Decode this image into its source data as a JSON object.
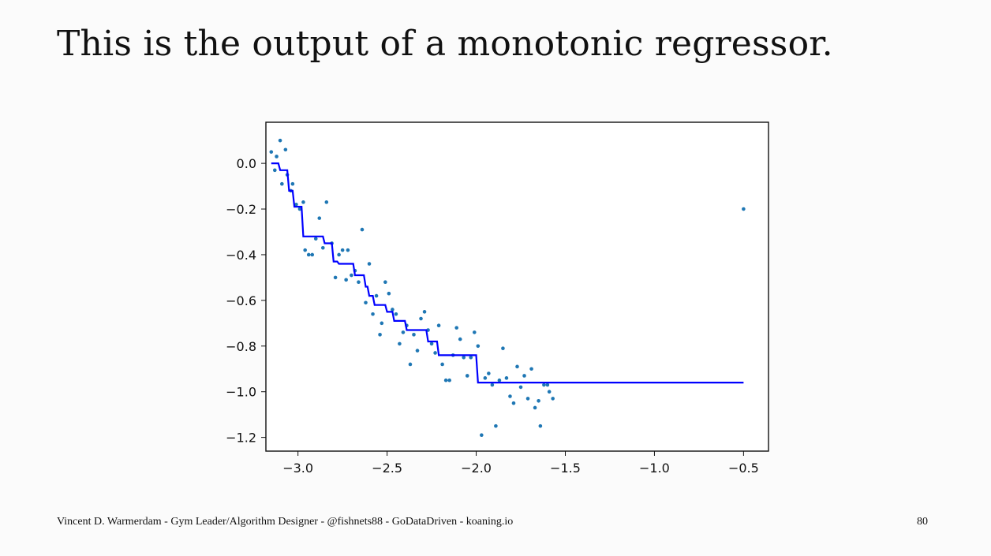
{
  "slide": {
    "title": "This is the output of a monotonic regressor.",
    "footer": "Vincent D. Warmerdam - Gym Leader/Algorithm Designer - @fishnets88 - GoDataDriven - koaning.io",
    "page_number": "80"
  },
  "chart_data": {
    "type": "scatter",
    "title": "",
    "xlabel": "",
    "ylabel": "",
    "xlim": [
      -3.18,
      -0.36
    ],
    "ylim": [
      -1.26,
      0.18
    ],
    "x_ticks": [
      -3.0,
      -2.5,
      -2.0,
      -1.5,
      -1.0,
      -0.5
    ],
    "x_tick_labels": [
      "−3.0",
      "−2.5",
      "−2.0",
      "−1.5",
      "−1.0",
      "−0.5"
    ],
    "y_ticks": [
      0.0,
      -0.2,
      -0.4,
      -0.6,
      -0.8,
      -1.0,
      -1.2
    ],
    "y_tick_labels": [
      "0.0",
      "−0.2",
      "−0.4",
      "−0.6",
      "−0.8",
      "−1.0",
      "−1.2"
    ],
    "grid": false,
    "legend": "none",
    "colors": {
      "points": "#1f77b4",
      "line": "#0000ff"
    },
    "series": [
      {
        "type": "scatter",
        "points": [
          [
            -3.15,
            0.05
          ],
          [
            -3.13,
            -0.03
          ],
          [
            -3.12,
            0.03
          ],
          [
            -3.1,
            0.1
          ],
          [
            -3.09,
            -0.09
          ],
          [
            -3.07,
            0.06
          ],
          [
            -3.06,
            -0.05
          ],
          [
            -3.04,
            -0.12
          ],
          [
            -3.03,
            -0.09
          ],
          [
            -3.01,
            -0.18
          ],
          [
            -2.99,
            -0.2
          ],
          [
            -2.97,
            -0.17
          ],
          [
            -2.96,
            -0.38
          ],
          [
            -2.94,
            -0.4
          ],
          [
            -2.92,
            -0.4
          ],
          [
            -2.9,
            -0.33
          ],
          [
            -2.88,
            -0.24
          ],
          [
            -2.86,
            -0.37
          ],
          [
            -2.84,
            -0.17
          ],
          [
            -2.81,
            -0.35
          ],
          [
            -2.79,
            -0.5
          ],
          [
            -2.77,
            -0.4
          ],
          [
            -2.75,
            -0.38
          ],
          [
            -2.73,
            -0.51
          ],
          [
            -2.72,
            -0.38
          ],
          [
            -2.7,
            -0.49
          ],
          [
            -2.68,
            -0.47
          ],
          [
            -2.66,
            -0.52
          ],
          [
            -2.64,
            -0.29
          ],
          [
            -2.62,
            -0.61
          ],
          [
            -2.6,
            -0.44
          ],
          [
            -2.58,
            -0.66
          ],
          [
            -2.56,
            -0.58
          ],
          [
            -2.54,
            -0.75
          ],
          [
            -2.53,
            -0.7
          ],
          [
            -2.51,
            -0.52
          ],
          [
            -2.49,
            -0.57
          ],
          [
            -2.47,
            -0.64
          ],
          [
            -2.45,
            -0.66
          ],
          [
            -2.43,
            -0.79
          ],
          [
            -2.41,
            -0.74
          ],
          [
            -2.39,
            -0.71
          ],
          [
            -2.37,
            -0.88
          ],
          [
            -2.35,
            -0.75
          ],
          [
            -2.33,
            -0.82
          ],
          [
            -2.31,
            -0.68
          ],
          [
            -2.29,
            -0.65
          ],
          [
            -2.27,
            -0.73
          ],
          [
            -2.25,
            -0.79
          ],
          [
            -2.23,
            -0.83
          ],
          [
            -2.21,
            -0.71
          ],
          [
            -2.19,
            -0.88
          ],
          [
            -2.17,
            -0.95
          ],
          [
            -2.15,
            -0.95
          ],
          [
            -2.13,
            -0.84
          ],
          [
            -2.11,
            -0.72
          ],
          [
            -2.09,
            -0.77
          ],
          [
            -2.07,
            -0.85
          ],
          [
            -2.05,
            -0.93
          ],
          [
            -2.03,
            -0.85
          ],
          [
            -2.01,
            -0.74
          ],
          [
            -1.99,
            -0.8
          ],
          [
            -1.97,
            -1.19
          ],
          [
            -1.95,
            -0.94
          ],
          [
            -1.93,
            -0.92
          ],
          [
            -1.91,
            -0.97
          ],
          [
            -1.89,
            -1.15
          ],
          [
            -1.87,
            -0.95
          ],
          [
            -1.85,
            -0.81
          ],
          [
            -1.83,
            -0.94
          ],
          [
            -1.81,
            -1.02
          ],
          [
            -1.79,
            -1.05
          ],
          [
            -1.77,
            -0.89
          ],
          [
            -1.75,
            -0.98
          ],
          [
            -1.73,
            -0.93
          ],
          [
            -1.71,
            -1.03
          ],
          [
            -1.69,
            -0.9
          ],
          [
            -1.67,
            -1.07
          ],
          [
            -1.65,
            -1.04
          ],
          [
            -1.64,
            -1.15
          ],
          [
            -1.62,
            -0.97
          ],
          [
            -1.6,
            -0.97
          ],
          [
            -1.59,
            -1.0
          ],
          [
            -1.57,
            -1.03
          ],
          [
            -0.5,
            -0.2
          ]
        ]
      },
      {
        "type": "line",
        "drawstyle": "steps",
        "points": [
          [
            -3.15,
            0.0
          ],
          [
            -3.11,
            0.0
          ],
          [
            -3.1,
            -0.03
          ],
          [
            -3.06,
            -0.03
          ],
          [
            -3.05,
            -0.12
          ],
          [
            -3.03,
            -0.12
          ],
          [
            -3.02,
            -0.19
          ],
          [
            -2.98,
            -0.19
          ],
          [
            -2.97,
            -0.32
          ],
          [
            -2.86,
            -0.32
          ],
          [
            -2.85,
            -0.35
          ],
          [
            -2.81,
            -0.35
          ],
          [
            -2.8,
            -0.43
          ],
          [
            -2.78,
            -0.43
          ],
          [
            -2.77,
            -0.44
          ],
          [
            -2.69,
            -0.44
          ],
          [
            -2.68,
            -0.49
          ],
          [
            -2.63,
            -0.49
          ],
          [
            -2.62,
            -0.54
          ],
          [
            -2.61,
            -0.54
          ],
          [
            -2.6,
            -0.58
          ],
          [
            -2.58,
            -0.58
          ],
          [
            -2.57,
            -0.62
          ],
          [
            -2.51,
            -0.62
          ],
          [
            -2.5,
            -0.65
          ],
          [
            -2.47,
            -0.65
          ],
          [
            -2.46,
            -0.69
          ],
          [
            -2.4,
            -0.69
          ],
          [
            -2.39,
            -0.73
          ],
          [
            -2.28,
            -0.73
          ],
          [
            -2.27,
            -0.78
          ],
          [
            -2.22,
            -0.78
          ],
          [
            -2.21,
            -0.84
          ],
          [
            -2.0,
            -0.84
          ],
          [
            -1.99,
            -0.96
          ],
          [
            -0.5,
            -0.96
          ]
        ]
      }
    ]
  }
}
